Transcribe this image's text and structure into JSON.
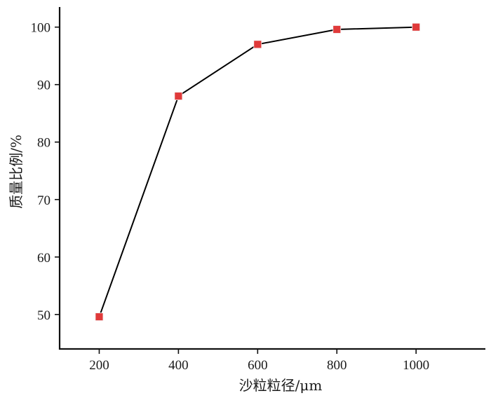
{
  "chart_data": {
    "type": "line",
    "xlabel": "沙粒粒径/μm",
    "ylabel": "质量比例/%",
    "x": [
      200,
      400,
      600,
      800,
      1000
    ],
    "series": [
      {
        "values": [
          49.6,
          88.0,
          97.0,
          99.6,
          100.0
        ]
      }
    ],
    "xlim": [
      100,
      1175
    ],
    "ylim": [
      44,
      103.5
    ],
    "xticks": [
      "200",
      "400",
      "600",
      "800",
      "1000"
    ],
    "yticks": [
      "50",
      "60",
      "70",
      "80",
      "90",
      "100"
    ],
    "grid": false,
    "line_color": "#000000",
    "marker": "square",
    "marker_color": "#e03a3a"
  }
}
